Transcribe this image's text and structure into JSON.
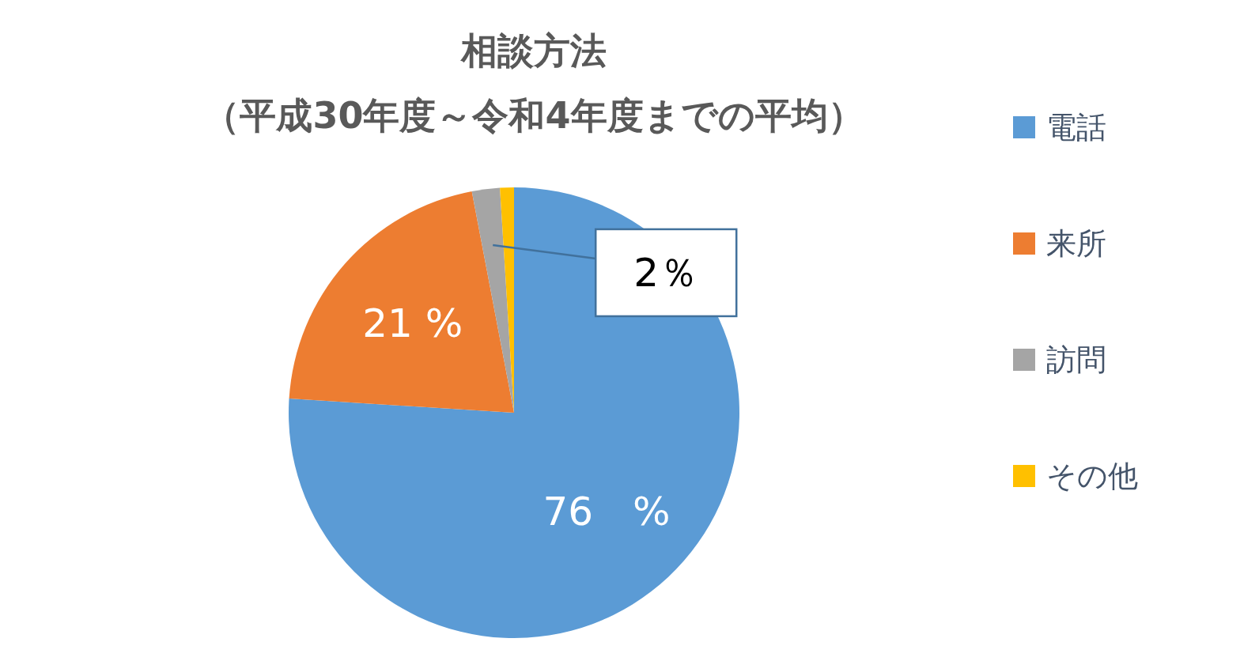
{
  "chart_data": {
    "type": "pie",
    "title": "相談方法",
    "subtitle": "（平成30年度～令和4年度までの平均）",
    "categories": [
      "電話",
      "来所",
      "訪問",
      "その他"
    ],
    "values": [
      76,
      21,
      2,
      1
    ],
    "colors": [
      "#5b9bd5",
      "#ed7d31",
      "#a5a5a5",
      "#ffc000"
    ],
    "value_labels": [
      "76　%",
      "21 %",
      "2％",
      null
    ],
    "legend": "right"
  }
}
